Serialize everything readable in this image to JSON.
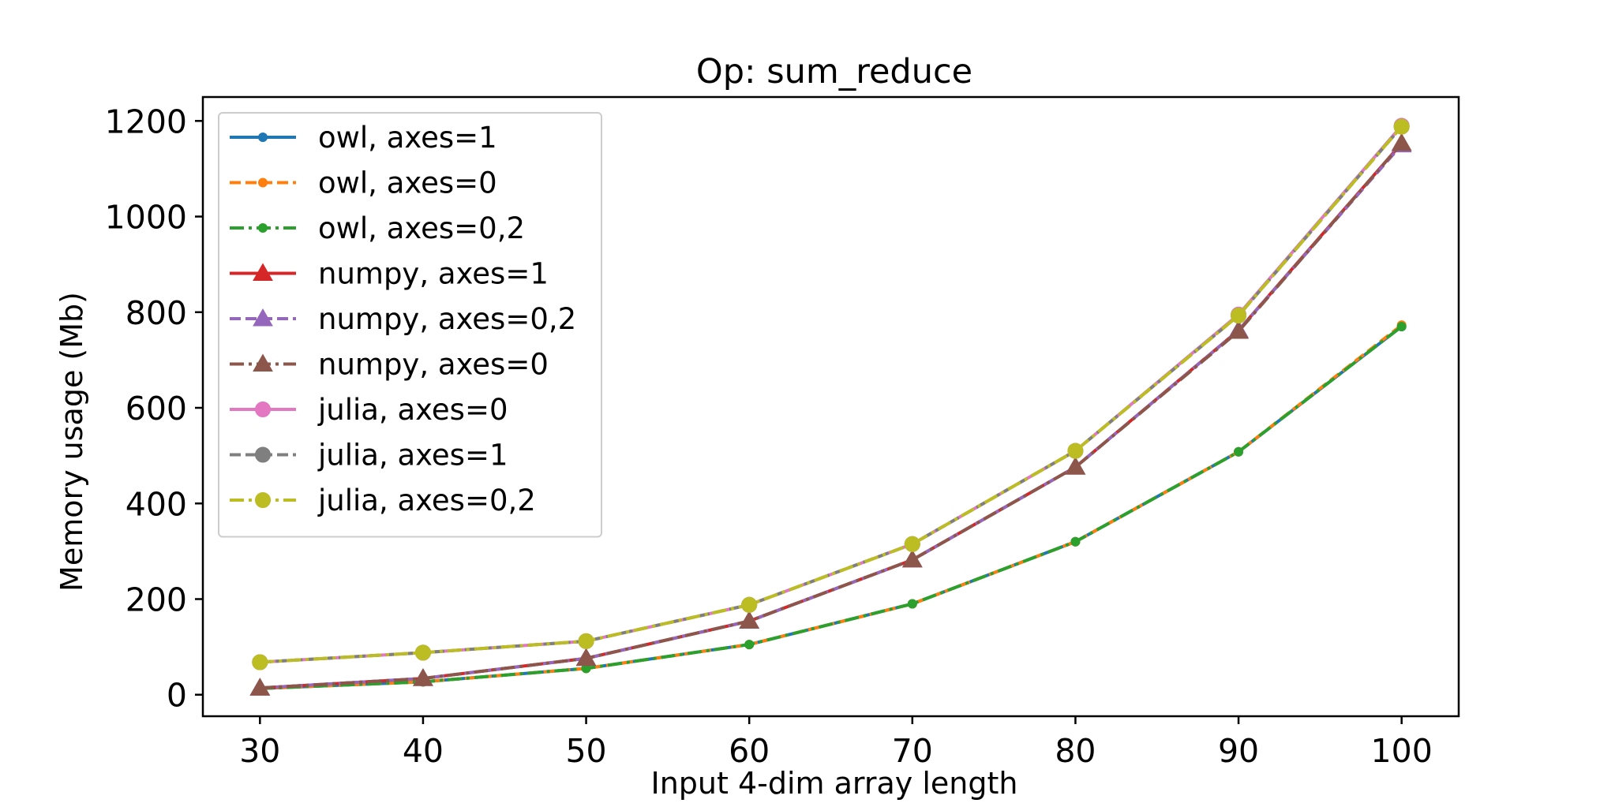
{
  "chart_data": {
    "type": "line",
    "title": "Op: sum_reduce",
    "xlabel": "Input 4-dim array length",
    "ylabel": "Memory usage (Mb)",
    "x": [
      30,
      40,
      50,
      60,
      70,
      80,
      90,
      100
    ],
    "xticks": [
      30,
      40,
      50,
      60,
      70,
      80,
      90,
      100
    ],
    "yticks": [
      0,
      200,
      400,
      600,
      800,
      1000,
      1200
    ],
    "xlim": [
      26.5,
      103.5
    ],
    "ylim": [
      -45,
      1250
    ],
    "grid": false,
    "legend_position": "top-left",
    "series": [
      {
        "name": "owl, axes=1",
        "color": "#1f77b4",
        "dash": "solid",
        "marker": "dot",
        "values": [
          13,
          27,
          55,
          105,
          190,
          320,
          508,
          770
        ]
      },
      {
        "name": "owl, axes=0",
        "color": "#ff7f0e",
        "dash": "dashed",
        "marker": "dot",
        "values": [
          13,
          27,
          55,
          105,
          190,
          320,
          508,
          773
        ]
      },
      {
        "name": "owl, axes=0,2",
        "color": "#2ca02c",
        "dash": "dashdot",
        "marker": "dot",
        "values": [
          13,
          27,
          55,
          105,
          190,
          320,
          508,
          770
        ]
      },
      {
        "name": "numpy, axes=1",
        "color": "#d62728",
        "dash": "solid",
        "marker": "triangle",
        "values": [
          14,
          34,
          76,
          154,
          282,
          476,
          762,
          1153
        ]
      },
      {
        "name": "numpy, axes=0,2",
        "color": "#9467bd",
        "dash": "dashed",
        "marker": "triangle",
        "values": [
          14,
          34,
          76,
          154,
          282,
          476,
          762,
          1150
        ]
      },
      {
        "name": "numpy, axes=0",
        "color": "#8c564b",
        "dash": "dashdot",
        "marker": "triangle",
        "values": [
          14,
          34,
          76,
          154,
          282,
          476,
          760,
          1153
        ]
      },
      {
        "name": "julia, axes=0",
        "color": "#e377c2",
        "dash": "solid",
        "marker": "circle",
        "values": [
          68,
          88,
          112,
          188,
          315,
          510,
          795,
          1190
        ]
      },
      {
        "name": "julia, axes=1",
        "color": "#7f7f7f",
        "dash": "dashed",
        "marker": "circle",
        "values": [
          68,
          88,
          112,
          188,
          315,
          510,
          793,
          1188
        ]
      },
      {
        "name": "julia, axes=0,2",
        "color": "#bcbd22",
        "dash": "dashdot",
        "marker": "circle",
        "values": [
          68,
          88,
          112,
          188,
          315,
          510,
          793,
          1188
        ]
      }
    ]
  }
}
